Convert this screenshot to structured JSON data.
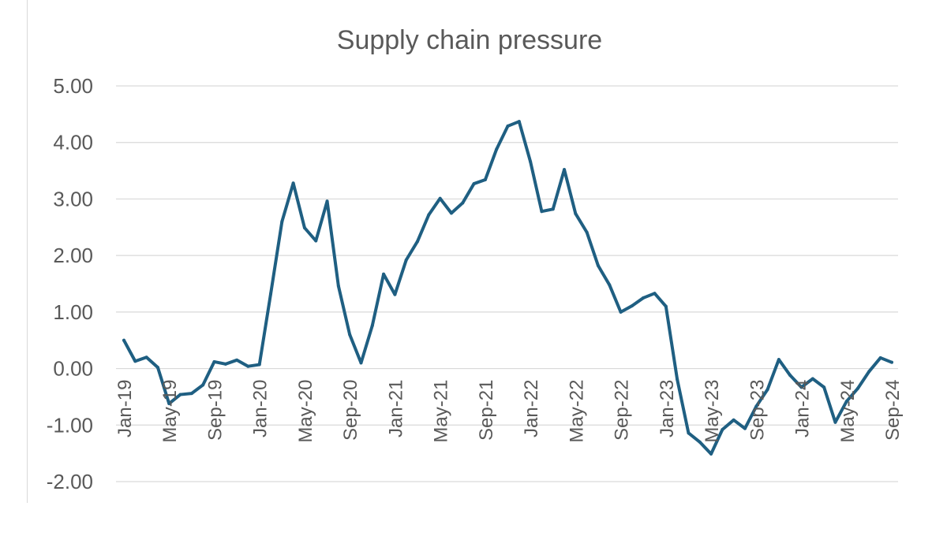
{
  "chart_data": {
    "type": "line",
    "title": "Supply chain pressure",
    "xlabel": "",
    "ylabel": "",
    "ylim": [
      -2,
      5
    ],
    "yticks": [
      "-2.00",
      "-1.00",
      "0.00",
      "1.00",
      "2.00",
      "3.00",
      "4.00",
      "5.00"
    ],
    "grid": true,
    "legend": "none",
    "line_color": "#1f5f82",
    "grid_color": "#d9d9d9",
    "text_color": "#595959",
    "categories": [
      "Jan-19",
      "Feb-19",
      "Mar-19",
      "Apr-19",
      "May-19",
      "Jun-19",
      "Jul-19",
      "Aug-19",
      "Sep-19",
      "Oct-19",
      "Nov-19",
      "Dec-19",
      "Jan-20",
      "Feb-20",
      "Mar-20",
      "Apr-20",
      "May-20",
      "Jun-20",
      "Jul-20",
      "Aug-20",
      "Sep-20",
      "Oct-20",
      "Nov-20",
      "Dec-20",
      "Jan-21",
      "Feb-21",
      "Mar-21",
      "Apr-21",
      "May-21",
      "Jun-21",
      "Jul-21",
      "Aug-21",
      "Sep-21",
      "Oct-21",
      "Nov-21",
      "Dec-21",
      "Jan-22",
      "Feb-22",
      "Mar-22",
      "Apr-22",
      "May-22",
      "Jun-22",
      "Jul-22",
      "Aug-22",
      "Sep-22",
      "Oct-22",
      "Nov-22",
      "Dec-22",
      "Jan-23",
      "Feb-23",
      "Mar-23",
      "Apr-23",
      "May-23",
      "Jun-23",
      "Jul-23",
      "Aug-23",
      "Sep-23",
      "Oct-23",
      "Nov-23",
      "Dec-23",
      "Jan-24",
      "Feb-24",
      "Mar-24",
      "Apr-24",
      "May-24",
      "Jun-24",
      "Jul-24",
      "Aug-24",
      "Sep-24"
    ],
    "x_tick_labels": [
      "Jan-19",
      "May-19",
      "Sep-19",
      "Jan-20",
      "May-20",
      "Sep-20",
      "Jan-21",
      "May-21",
      "Sep-21",
      "Jan-22",
      "May-22",
      "Sep-22",
      "Jan-23",
      "May-23",
      "Sep-23",
      "Jan-24",
      "May-24",
      "Sep-24"
    ],
    "series": [
      {
        "values": [
          0.5,
          0.13,
          0.2,
          0.02,
          -0.62,
          -0.46,
          -0.44,
          -0.29,
          0.12,
          0.08,
          0.15,
          0.04,
          0.07,
          1.32,
          2.6,
          3.28,
          2.49,
          2.26,
          2.96,
          1.46,
          0.6,
          0.1,
          0.76,
          1.67,
          1.31,
          1.92,
          2.25,
          2.72,
          3.01,
          2.75,
          2.93,
          3.27,
          3.34,
          3.88,
          4.29,
          4.37,
          3.66,
          2.78,
          2.82,
          3.52,
          2.74,
          2.41,
          1.82,
          1.48,
          1.0,
          1.11,
          1.25,
          1.33,
          1.1,
          -0.19,
          -1.14,
          -1.3,
          -1.51,
          -1.08,
          -0.91,
          -1.06,
          -0.67,
          -0.37,
          0.16,
          -0.12,
          -0.33,
          -0.18,
          -0.33,
          -0.95,
          -0.58,
          -0.35,
          -0.05,
          0.19,
          0.11
        ]
      }
    ]
  }
}
